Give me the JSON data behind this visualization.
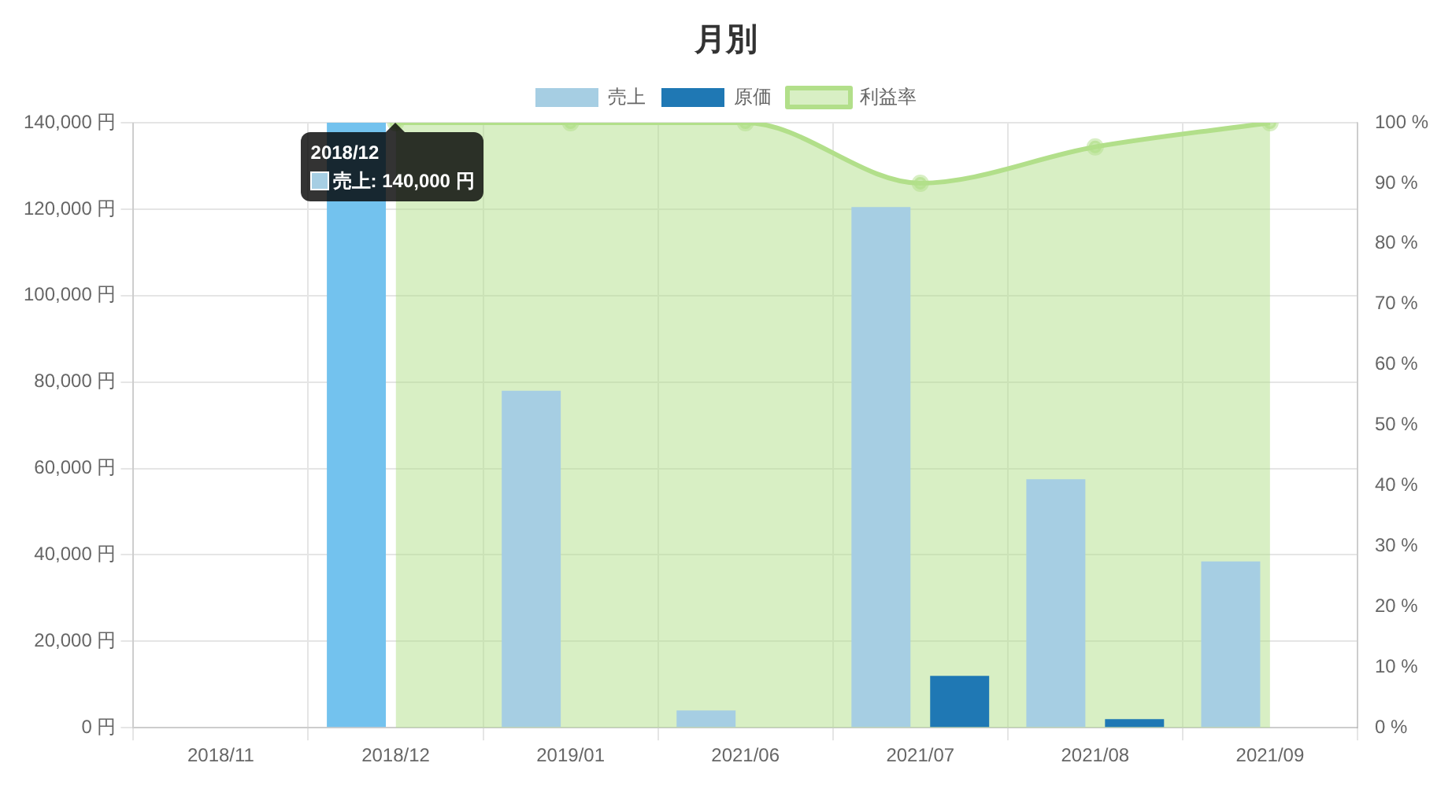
{
  "chart_data": {
    "type": "bar",
    "title": "月別",
    "categories": [
      "2018/11",
      "2018/12",
      "2019/01",
      "2021/06",
      "2021/07",
      "2021/08",
      "2021/09"
    ],
    "series": [
      {
        "name": "売上",
        "color": "#a6cee3",
        "colors": [
          "#a6cee3",
          "#73c2ee",
          "#a6cee3",
          "#a6cee3",
          "#a6cee3",
          "#a6cee3",
          "#a6cee3"
        ],
        "values": [
          0,
          140000,
          78000,
          4000,
          120500,
          57500,
          38500
        ]
      },
      {
        "name": "原価",
        "color": "#1f78b4",
        "values": [
          0,
          0,
          0,
          0,
          12000,
          2000,
          0
        ]
      },
      {
        "name": "利益率",
        "type": "area",
        "axis": "y2",
        "color": "#b2df8a",
        "marker": "circle",
        "values": [
          null,
          100,
          100,
          100,
          90,
          96,
          100
        ]
      }
    ],
    "ylim": [
      0,
      140000
    ],
    "yticks": [
      {
        "value": 0,
        "label": "0 円"
      },
      {
        "value": 20000,
        "label": "20,000 円"
      },
      {
        "value": 40000,
        "label": "40,000 円"
      },
      {
        "value": 60000,
        "label": "60,000 円"
      },
      {
        "value": 80000,
        "label": "80,000 円"
      },
      {
        "value": 100000,
        "label": "100,000 円"
      },
      {
        "value": 120000,
        "label": "120,000 円"
      },
      {
        "value": 140000,
        "label": "140,000 円"
      }
    ],
    "y2lim": [
      0,
      100
    ],
    "y2ticks": [
      {
        "value": 0,
        "label": "0 %"
      },
      {
        "value": 10,
        "label": "10 %"
      },
      {
        "value": 20,
        "label": "20 %"
      },
      {
        "value": 30,
        "label": "30 %"
      },
      {
        "value": 40,
        "label": "40 %"
      },
      {
        "value": 50,
        "label": "50 %"
      },
      {
        "value": 60,
        "label": "60 %"
      },
      {
        "value": 70,
        "label": "70 %"
      },
      {
        "value": 80,
        "label": "80 %"
      },
      {
        "value": 90,
        "label": "90 %"
      },
      {
        "value": 100,
        "label": "100 %"
      }
    ],
    "grid": true,
    "legend": "top",
    "annotations": [
      {
        "text": "2018/12\n売上: 140,000 円",
        "x": "2018/12",
        "y": 140000
      }
    ]
  }
}
